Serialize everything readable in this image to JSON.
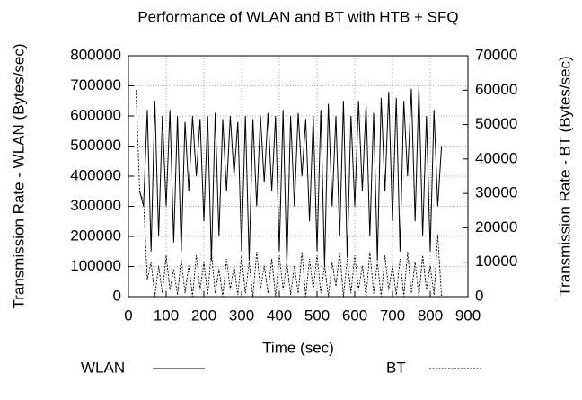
{
  "chart_data": {
    "type": "line",
    "title": "Performance of WLAN and BT with HTB + SFQ",
    "xlabel": "Time (sec)",
    "ylabel": "Transmission Rate - WLAN (Bytes/sec)",
    "y2label": "Transmission Rate - BT (Bytes/sec)",
    "xlim": [
      0,
      900
    ],
    "xticks": [
      0,
      100,
      200,
      300,
      400,
      500,
      600,
      700,
      800,
      900
    ],
    "ylim": [
      0,
      800000
    ],
    "yticks": [
      0,
      100000,
      200000,
      300000,
      400000,
      500000,
      600000,
      700000,
      800000
    ],
    "y2lim": [
      0,
      70000
    ],
    "y2ticks": [
      0,
      10000,
      20000,
      30000,
      40000,
      50000,
      60000,
      70000
    ],
    "grid": true,
    "legend": "bottom",
    "x": [
      20,
      30,
      40,
      50,
      60,
      70,
      80,
      90,
      100,
      110,
      120,
      130,
      140,
      150,
      160,
      170,
      180,
      190,
      200,
      210,
      220,
      230,
      240,
      250,
      260,
      270,
      280,
      290,
      300,
      310,
      320,
      330,
      340,
      350,
      360,
      370,
      380,
      390,
      400,
      410,
      420,
      430,
      440,
      450,
      460,
      470,
      480,
      490,
      500,
      510,
      520,
      530,
      540,
      550,
      560,
      570,
      580,
      590,
      600,
      610,
      620,
      630,
      640,
      650,
      660,
      670,
      680,
      690,
      700,
      710,
      720,
      730,
      740,
      750,
      760,
      770,
      780,
      790,
      800,
      810,
      820,
      830
    ],
    "series": [
      {
        "name": "WLAN",
        "color": "#000000",
        "style": "solid",
        "values": [
          null,
          350000,
          300000,
          620000,
          150000,
          650000,
          200000,
          600000,
          300000,
          620000,
          180000,
          600000,
          150000,
          580000,
          350000,
          600000,
          400000,
          590000,
          250000,
          600000,
          120000,
          610000,
          200000,
          590000,
          350000,
          600000,
          400000,
          580000,
          150000,
          600000,
          120000,
          590000,
          300000,
          600000,
          380000,
          610000,
          350000,
          600000,
          150000,
          620000,
          100000,
          600000,
          300000,
          610000,
          400000,
          590000,
          250000,
          600000,
          150000,
          620000,
          100000,
          640000,
          300000,
          600000,
          200000,
          650000,
          130000,
          600000,
          300000,
          650000,
          350000,
          640000,
          200000,
          610000,
          120000,
          660000,
          350000,
          680000,
          250000,
          660000,
          150000,
          650000,
          400000,
          690000,
          250000,
          700000,
          200000,
          600000,
          150000,
          620000,
          300000,
          500000
        ]
      },
      {
        "name": "BT",
        "color": "#000000",
        "style": "dashed",
        "axis": "y2",
        "values": [
          60000,
          30000,
          28000,
          5000,
          10000,
          0,
          9000,
          1000,
          12000,
          2000,
          8000,
          500,
          11000,
          1000,
          9000,
          0,
          12000,
          2000,
          10000,
          500,
          13000,
          1000,
          8000,
          0,
          11000,
          2000,
          9000,
          500,
          12000,
          1000,
          10000,
          0,
          13000,
          2000,
          9000,
          1000,
          11000,
          0,
          12000,
          2000,
          10000,
          500,
          9000,
          1000,
          13000,
          0,
          11000,
          2000,
          12000,
          1000,
          9000,
          0,
          10000,
          3000,
          13000,
          0,
          11000,
          1000,
          12000,
          2000,
          9000,
          0,
          13000,
          1000,
          10000,
          0,
          12000,
          2000,
          9000,
          500,
          11000,
          0,
          13000,
          1000,
          10000,
          0,
          12000,
          2000,
          9000,
          500,
          18000,
          0
        ]
      }
    ]
  }
}
